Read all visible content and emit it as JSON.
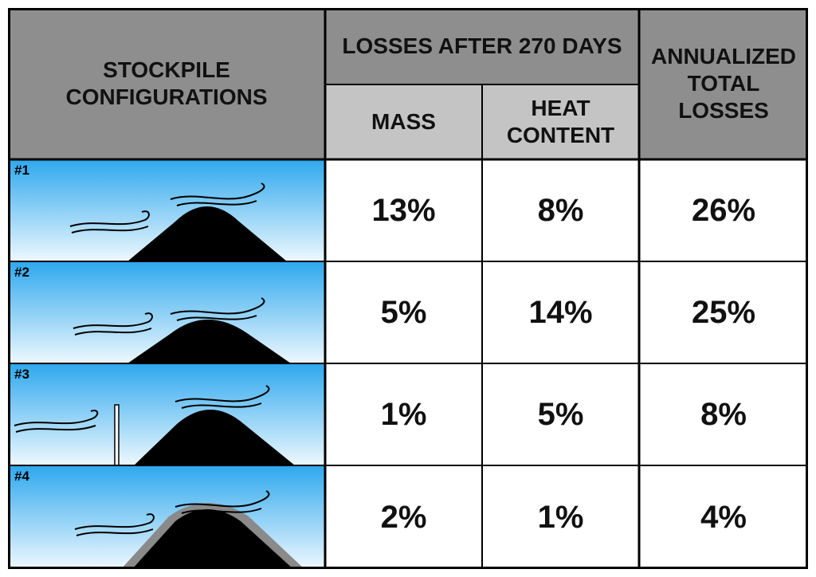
{
  "header": {
    "configurations": "STOCKPILE\nCONFIGURATIONS",
    "losses_group": "LOSSES AFTER 270 DAYS",
    "mass": "MASS",
    "heat_content": "HEAT\nCONTENT",
    "annualized": "ANNUALIZED\nTOTAL\nLOSSES"
  },
  "rows": [
    {
      "id": "#1",
      "mass": "13%",
      "heat": "8%",
      "annual": "26%",
      "illustration": "uncovered-pile"
    },
    {
      "id": "#2",
      "mass": "5%",
      "heat": "14%",
      "annual": "25%",
      "illustration": "uncovered-pile"
    },
    {
      "id": "#3",
      "mass": "1%",
      "heat": "5%",
      "annual": "8%",
      "illustration": "pile-with-windbreak"
    },
    {
      "id": "#4",
      "mass": "2%",
      "heat": "1%",
      "annual": "4%",
      "illustration": "covered-pile"
    }
  ],
  "colors": {
    "header_dark": "#8e8e8e",
    "header_light": "#c4c4c4",
    "sky_top": "#2ea8ee",
    "sky_bottom": "#eef8fe",
    "pile": "#000000",
    "cover": "#8a8a8a",
    "border": "#000000"
  }
}
